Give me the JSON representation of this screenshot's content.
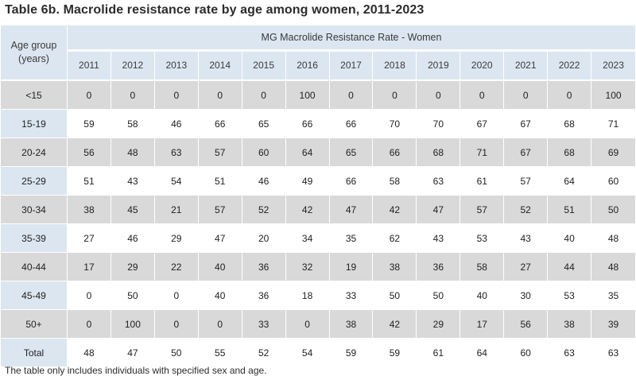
{
  "title": "Table 6b. Macrolide resistance rate by age among women, 2011-2023",
  "header": {
    "age_group_line1": "Age group",
    "age_group_line2": "(years)",
    "group_label": "MG Macrolide Resistance Rate - Women"
  },
  "years": [
    "2011",
    "2012",
    "2013",
    "2014",
    "2015",
    "2016",
    "2017",
    "2018",
    "2019",
    "2020",
    "2021",
    "2022",
    "2023"
  ],
  "rows": [
    {
      "age": "<15",
      "values": [
        "0",
        "0",
        "0",
        "0",
        "0",
        "100",
        "0",
        "0",
        "0",
        "0",
        "0",
        "0",
        "100"
      ]
    },
    {
      "age": "15-19",
      "values": [
        "59",
        "58",
        "46",
        "66",
        "65",
        "66",
        "66",
        "70",
        "70",
        "67",
        "67",
        "68",
        "71"
      ]
    },
    {
      "age": "20-24",
      "values": [
        "56",
        "48",
        "63",
        "57",
        "60",
        "64",
        "65",
        "66",
        "68",
        "71",
        "67",
        "68",
        "69"
      ]
    },
    {
      "age": "25-29",
      "values": [
        "51",
        "43",
        "54",
        "51",
        "46",
        "49",
        "66",
        "58",
        "63",
        "61",
        "57",
        "64",
        "60"
      ]
    },
    {
      "age": "30-34",
      "values": [
        "38",
        "45",
        "21",
        "57",
        "52",
        "42",
        "47",
        "42",
        "47",
        "57",
        "52",
        "51",
        "50"
      ]
    },
    {
      "age": "35-39",
      "values": [
        "27",
        "46",
        "29",
        "47",
        "20",
        "34",
        "35",
        "62",
        "43",
        "53",
        "43",
        "40",
        "48"
      ]
    },
    {
      "age": "40-44",
      "values": [
        "17",
        "29",
        "22",
        "40",
        "36",
        "32",
        "19",
        "38",
        "36",
        "58",
        "27",
        "44",
        "48"
      ]
    },
    {
      "age": "45-49",
      "values": [
        "0",
        "50",
        "0",
        "40",
        "36",
        "18",
        "33",
        "50",
        "50",
        "40",
        "30",
        "53",
        "35"
      ]
    },
    {
      "age": "50+",
      "values": [
        "0",
        "100",
        "0",
        "0",
        "33",
        "0",
        "38",
        "42",
        "29",
        "17",
        "56",
        "38",
        "39"
      ]
    },
    {
      "age": "Total",
      "values": [
        "48",
        "47",
        "50",
        "55",
        "52",
        "54",
        "59",
        "59",
        "61",
        "64",
        "60",
        "63",
        "63"
      ]
    }
  ],
  "footnote": "The table only includes individuals with specified sex and age."
}
